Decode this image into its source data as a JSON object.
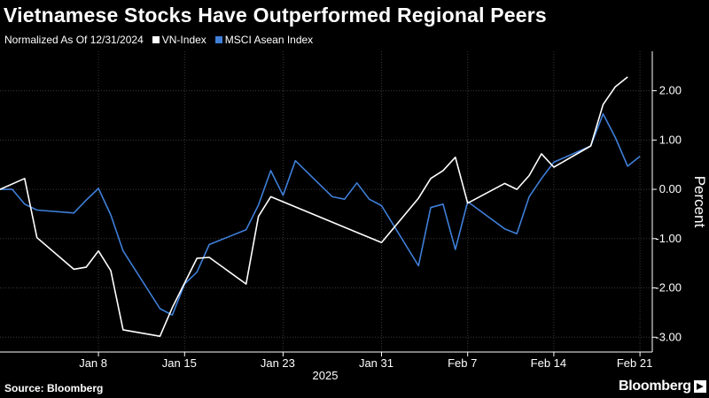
{
  "chart_data": {
    "type": "line",
    "title": "Vietnamese Stocks Have Outperformed Regional Peers",
    "subtitle": "Normalized As Of 12/31/2024",
    "ylabel": "Percent",
    "xlabel": "2025",
    "ylim": [
      -3.3,
      2.8
    ],
    "y_ticks": [
      2,
      1,
      0,
      -1,
      -2,
      -3
    ],
    "y_tick_labels": [
      "2.00",
      "1.00",
      "0.00",
      "-1.00",
      "-2.00",
      "-3.00"
    ],
    "x_tick_labels": [
      "Jan 8",
      "Jan 15",
      "Jan 23",
      "Jan 31",
      "Feb 7",
      "Feb 14",
      "Feb 21"
    ],
    "x": [
      "2024-12-31",
      "2025-01-02",
      "2025-01-03",
      "2025-01-06",
      "2025-01-07",
      "2025-01-08",
      "2025-01-09",
      "2025-01-10",
      "2025-01-13",
      "2025-01-14",
      "2025-01-15",
      "2025-01-16",
      "2025-01-17",
      "2025-01-20",
      "2025-01-21",
      "2025-01-22",
      "2025-01-23",
      "2025-01-24",
      "2025-01-31",
      "2025-02-03",
      "2025-02-04",
      "2025-02-05",
      "2025-02-06",
      "2025-02-07",
      "2025-02-10",
      "2025-02-11",
      "2025-02-12",
      "2025-02-13",
      "2025-02-14",
      "2025-02-17",
      "2025-02-18",
      "2025-02-19",
      "2025-02-20",
      "2025-02-21"
    ],
    "grid": true,
    "series": [
      {
        "name": "VN-Index",
        "color": "#ffffff",
        "points": [
          [
            "2024-12-31",
            0.0
          ],
          [
            "2025-01-02",
            0.22
          ],
          [
            "2025-01-03",
            -0.98
          ],
          [
            "2025-01-06",
            -1.62
          ],
          [
            "2025-01-07",
            -1.58
          ],
          [
            "2025-01-08",
            -1.25
          ],
          [
            "2025-01-09",
            -1.65
          ],
          [
            "2025-01-10",
            -2.85
          ],
          [
            "2025-01-13",
            -2.98
          ],
          [
            "2025-01-14",
            -2.4
          ],
          [
            "2025-01-15",
            -1.9
          ],
          [
            "2025-01-16",
            -1.4
          ],
          [
            "2025-01-17",
            -1.38
          ],
          [
            "2025-01-20",
            -1.92
          ],
          [
            "2025-01-21",
            -0.55
          ],
          [
            "2025-01-22",
            -0.15
          ],
          [
            "2025-01-31",
            -1.08
          ],
          [
            "2025-02-03",
            -0.18
          ],
          [
            "2025-02-04",
            0.22
          ],
          [
            "2025-02-05",
            0.38
          ],
          [
            "2025-02-06",
            0.65
          ],
          [
            "2025-02-07",
            -0.28
          ],
          [
            "2025-02-10",
            0.12
          ],
          [
            "2025-02-11",
            0.0
          ],
          [
            "2025-02-12",
            0.28
          ],
          [
            "2025-02-13",
            0.72
          ],
          [
            "2025-02-14",
            0.45
          ],
          [
            "2025-02-17",
            0.88
          ],
          [
            "2025-02-18",
            1.72
          ],
          [
            "2025-02-19",
            2.08
          ],
          [
            "2025-02-20",
            2.28
          ]
        ]
      },
      {
        "name": "MSCI Asean Index",
        "color": "#3f7fd9",
        "points": [
          [
            "2024-12-31",
            0.0
          ],
          [
            "2025-01-01",
            0.0
          ],
          [
            "2025-01-02",
            -0.3
          ],
          [
            "2025-01-03",
            -0.42
          ],
          [
            "2025-01-06",
            -0.48
          ],
          [
            "2025-01-07",
            -0.22
          ],
          [
            "2025-01-08",
            0.02
          ],
          [
            "2025-01-09",
            -0.52
          ],
          [
            "2025-01-10",
            -1.25
          ],
          [
            "2025-01-13",
            -2.42
          ],
          [
            "2025-01-14",
            -2.55
          ],
          [
            "2025-01-15",
            -1.92
          ],
          [
            "2025-01-16",
            -1.68
          ],
          [
            "2025-01-17",
            -1.12
          ],
          [
            "2025-01-20",
            -0.82
          ],
          [
            "2025-01-21",
            -0.32
          ],
          [
            "2025-01-22",
            0.38
          ],
          [
            "2025-01-23",
            -0.12
          ],
          [
            "2025-01-24",
            0.58
          ],
          [
            "2025-01-27",
            -0.15
          ],
          [
            "2025-01-28",
            -0.2
          ],
          [
            "2025-01-29",
            0.13
          ],
          [
            "2025-01-30",
            -0.2
          ],
          [
            "2025-01-31",
            -0.33
          ],
          [
            "2025-02-03",
            -1.55
          ],
          [
            "2025-02-04",
            -0.37
          ],
          [
            "2025-02-05",
            -0.3
          ],
          [
            "2025-02-06",
            -1.22
          ],
          [
            "2025-02-07",
            -0.25
          ],
          [
            "2025-02-10",
            -0.8
          ],
          [
            "2025-02-11",
            -0.9
          ],
          [
            "2025-02-12",
            -0.15
          ],
          [
            "2025-02-13",
            0.22
          ],
          [
            "2025-02-14",
            0.55
          ],
          [
            "2025-02-17",
            0.88
          ],
          [
            "2025-02-18",
            1.53
          ],
          [
            "2025-02-19",
            1.05
          ],
          [
            "2025-02-20",
            0.47
          ],
          [
            "2025-02-21",
            0.67
          ]
        ]
      }
    ]
  },
  "footer": {
    "source": "Source: Bloomberg",
    "logo": "Bloomberg"
  },
  "colors": {
    "background": "#000000",
    "grid": "#3a3a3a",
    "axis": "#ffffff"
  }
}
